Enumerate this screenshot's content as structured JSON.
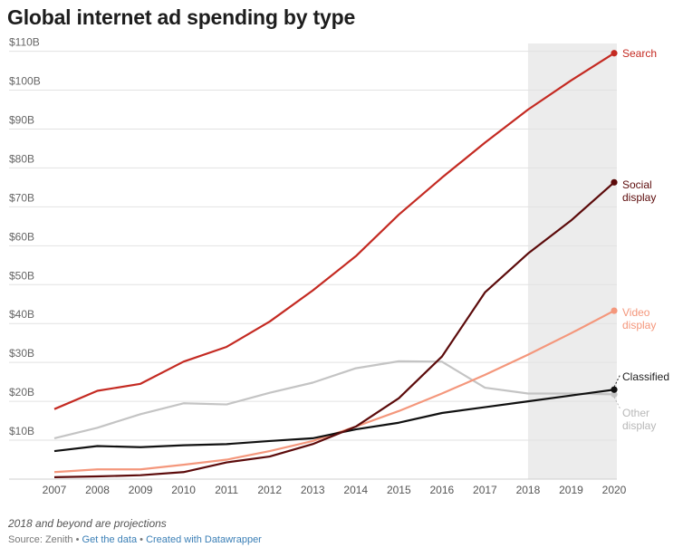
{
  "title": "Global internet ad spending by type",
  "footnote": "2018 and beyond are projections",
  "source": {
    "prefix": "Source: Zenith",
    "sep": "•",
    "get_data": "Get the data",
    "created_with": "Created with Datawrapper"
  },
  "colors": {
    "search": "#c42a22",
    "social": "#5c0b0b",
    "video": "#f4977c",
    "classified": "#111111",
    "other": "#c4c4c4",
    "projection_band": "#ececec",
    "grid": "#e2e2e2"
  },
  "chart_data": {
    "type": "line",
    "title": "Global internet ad spending by type",
    "xlabel": "",
    "ylabel": "",
    "x": [
      2007,
      2008,
      2009,
      2010,
      2011,
      2012,
      2013,
      2014,
      2015,
      2016,
      2017,
      2018,
      2019,
      2020
    ],
    "x_tick_labels": [
      "2007",
      "2008",
      "2009",
      "2010",
      "2011",
      "2012",
      "2013",
      "2014",
      "2015",
      "2016",
      "2017",
      "2018",
      "2019",
      "2020"
    ],
    "y_ticks": [
      10,
      20,
      30,
      40,
      50,
      60,
      70,
      80,
      90,
      100,
      110
    ],
    "y_tick_labels": [
      "$10B",
      "$20B",
      "$30B",
      "$40B",
      "$50B",
      "$60B",
      "$70B",
      "$80B",
      "$90B",
      "$100B",
      "$110B"
    ],
    "ylim": [
      0,
      112
    ],
    "grid": true,
    "projection_start": 2018,
    "projection_end": 2020,
    "series": [
      {
        "key": "search",
        "name": "Search",
        "label_lines": [
          "Search"
        ],
        "values": [
          18,
          22.7,
          24.5,
          30.2,
          34,
          40.5,
          48.5,
          57.3,
          68,
          77.5,
          86.5,
          95,
          102.5,
          109.5
        ]
      },
      {
        "key": "social",
        "name": "Social display",
        "label_lines": [
          "Social",
          "display"
        ],
        "values": [
          0.5,
          0.7,
          1,
          1.8,
          4.3,
          5.8,
          9,
          13.5,
          20.8,
          31.5,
          48,
          58,
          66.5,
          76.3
        ]
      },
      {
        "key": "video",
        "name": "Video display",
        "label_lines": [
          "Video",
          "display"
        ],
        "values": [
          1.8,
          2.5,
          2.5,
          3.7,
          5,
          7.2,
          9.8,
          13.5,
          17.5,
          22,
          26.8,
          32,
          37.5,
          43.3
        ]
      },
      {
        "key": "classified",
        "name": "Classified",
        "label_lines": [
          "Classified"
        ],
        "values": [
          7.2,
          8.5,
          8.2,
          8.7,
          9,
          9.8,
          10.5,
          12.8,
          14.5,
          17,
          18.5,
          20,
          21.5,
          23
        ]
      },
      {
        "key": "other",
        "name": "Other display",
        "label_lines": [
          "Other",
          "display"
        ],
        "values": [
          10.5,
          13.2,
          16.7,
          19.5,
          19.2,
          22.2,
          24.8,
          28.5,
          30.3,
          30.2,
          23.5,
          22,
          22,
          21.8
        ]
      }
    ]
  }
}
